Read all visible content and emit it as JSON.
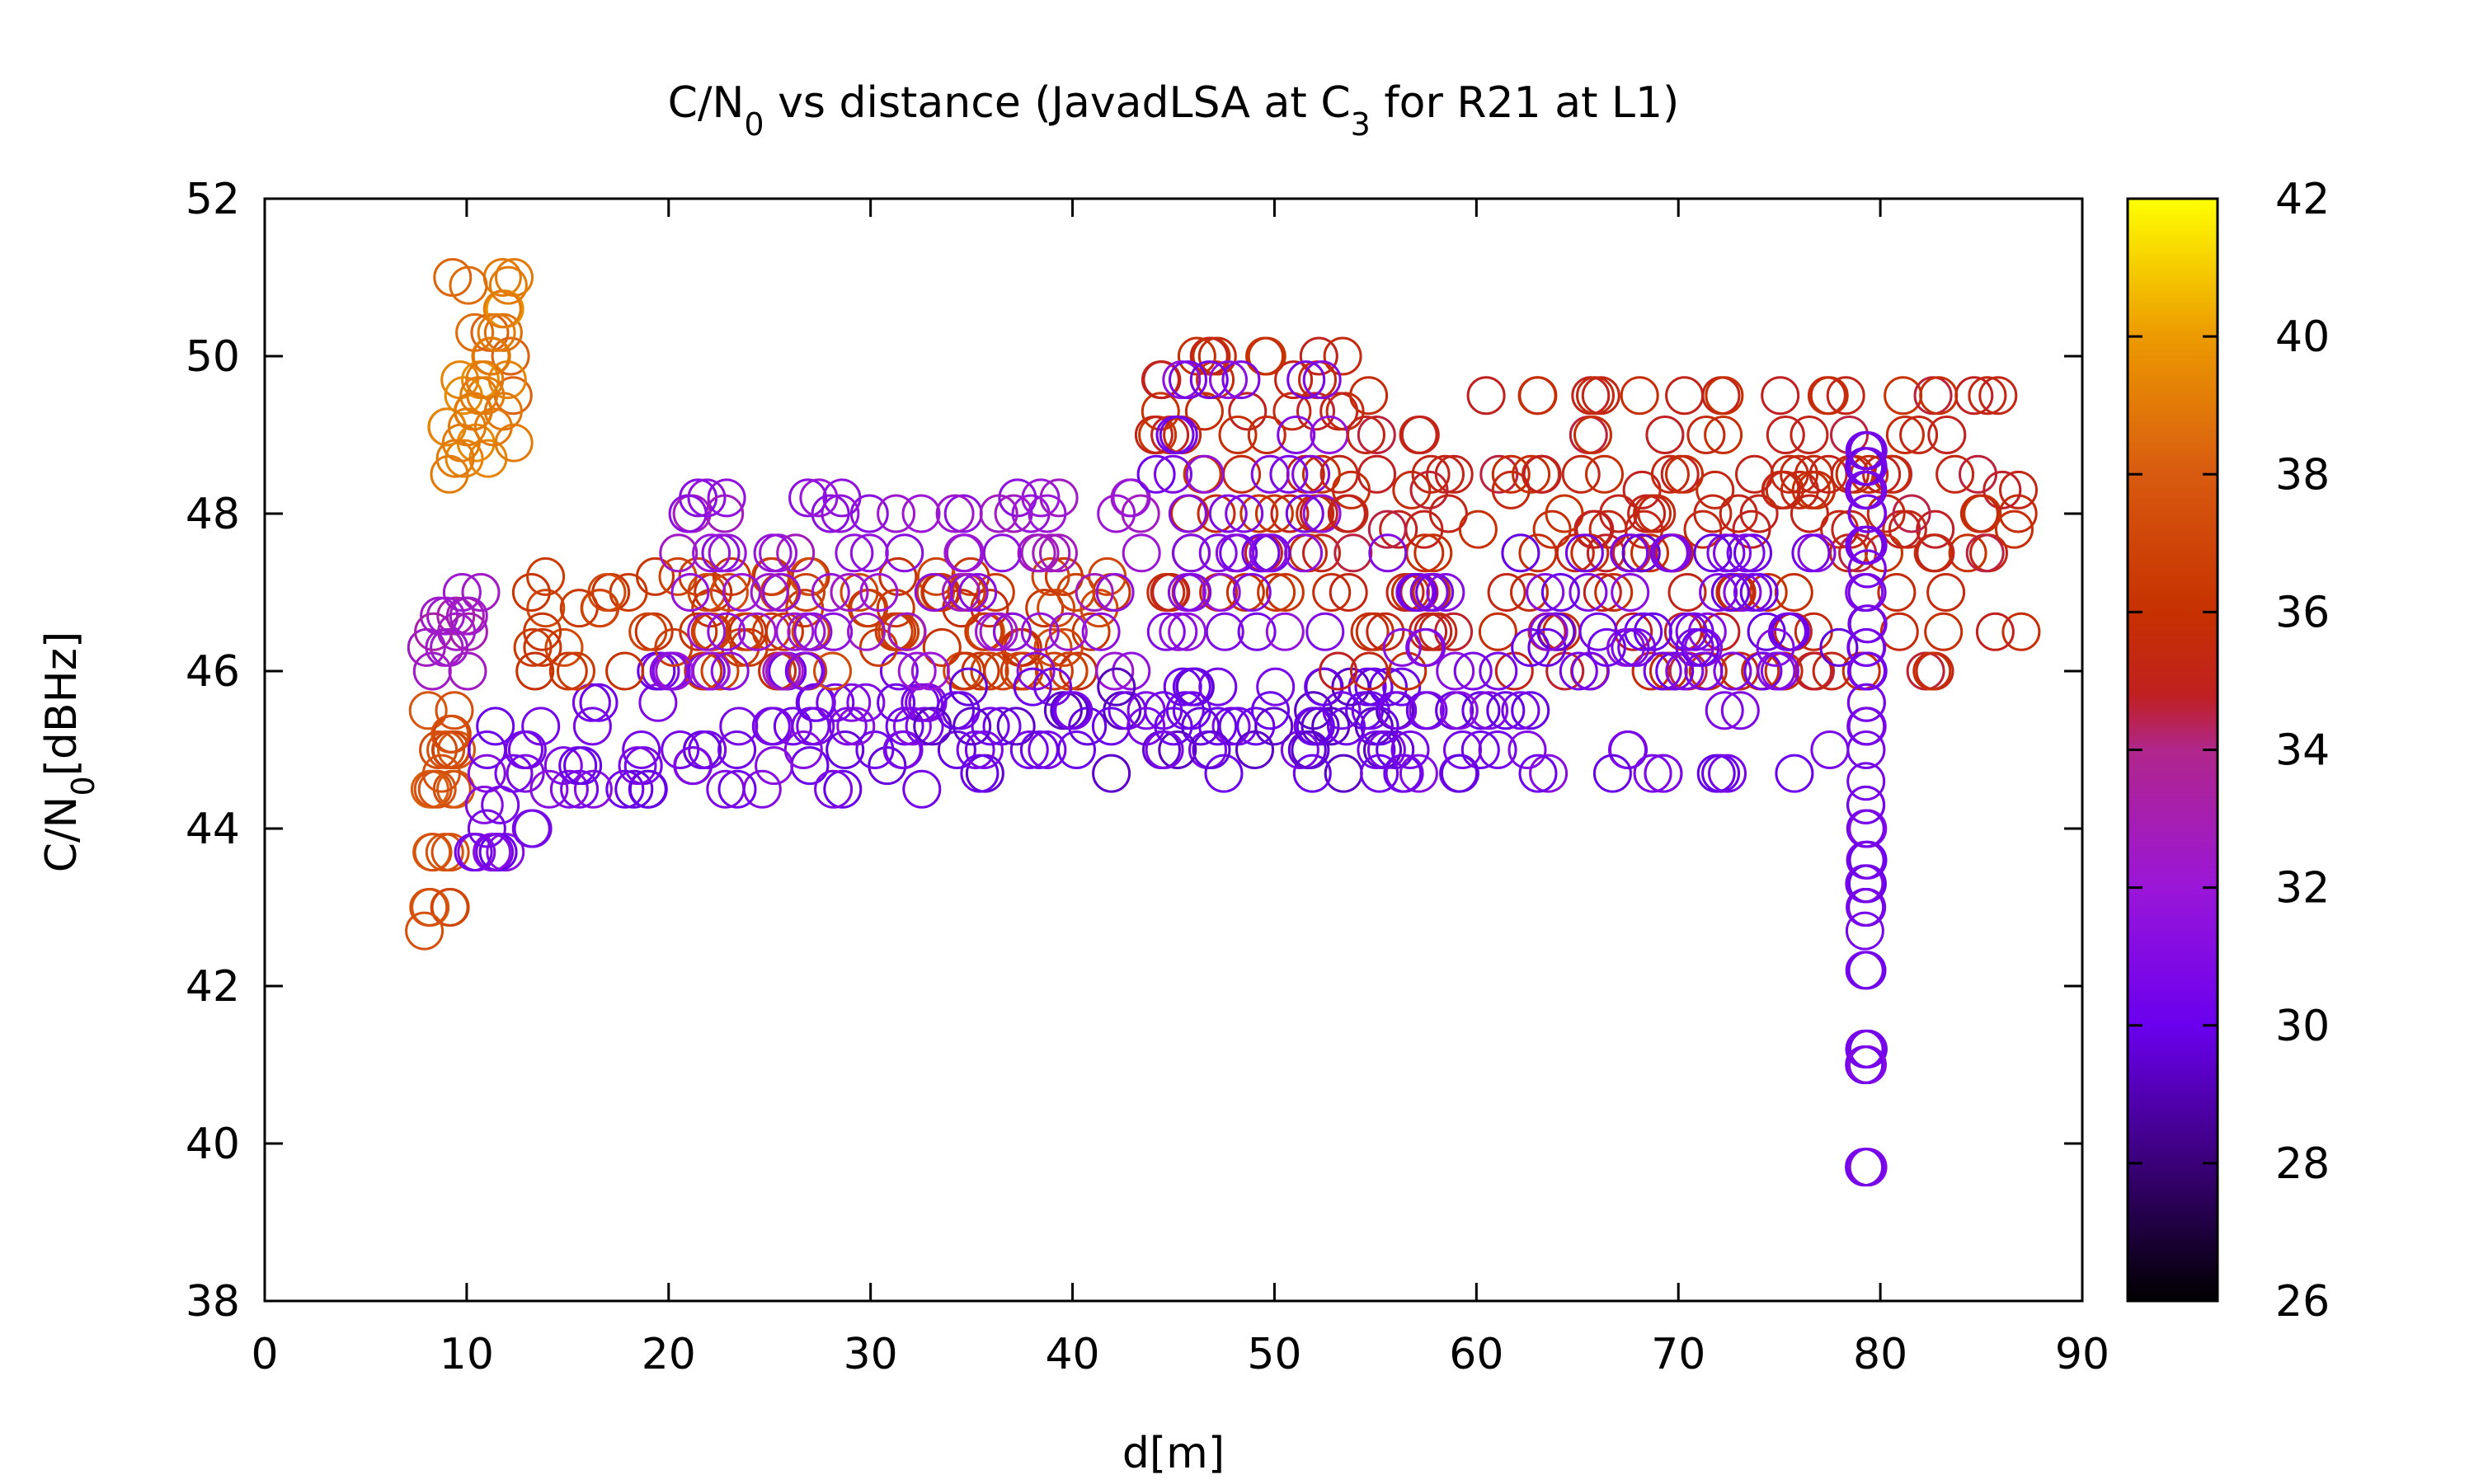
{
  "chart_data": {
    "type": "scatter",
    "title": {
      "text_a": "C/N",
      "sub_a": "0",
      "text_b": " vs distance (JavadLSA at C",
      "sub_b": "3",
      "text_c": " for R21 at L1)"
    },
    "xlabel": "d[m]",
    "ylabel": {
      "main": "C/N",
      "sub": "0",
      "rest": "[dBHz]"
    },
    "xlim": [
      0,
      90
    ],
    "ylim": [
      38,
      52
    ],
    "xticks": [
      "0",
      "10",
      "20",
      "30",
      "40",
      "50",
      "60",
      "70",
      "80",
      "90"
    ],
    "yticks": [
      "38",
      "40",
      "42",
      "44",
      "46",
      "48",
      "50",
      "52"
    ],
    "colorbar": {
      "range": [
        26,
        42
      ],
      "ticks": [
        "26",
        "28",
        "30",
        "32",
        "34",
        "36",
        "38",
        "40",
        "42"
      ],
      "palette": "gnuplot-like (black → blue/purple → red → orange → yellow)"
    },
    "marker": "open circle",
    "grid": false,
    "clusters": [
      {
        "name": "early-orange",
        "x_range": [
          7.8,
          9.5
        ],
        "y_values": [
          42.7,
          43,
          43.7,
          44.5,
          44.7,
          45,
          45.2,
          45.5
        ],
        "color_value": 37.5
      },
      {
        "name": "early-gold-spike",
        "x_range": [
          9,
          12.5
        ],
        "y_values": [
          48.5,
          48.7,
          48.9,
          49.1,
          49.3,
          49.5,
          49.7,
          50,
          50.3,
          50.6,
          50.9,
          51
        ],
        "color_value": 39
      },
      {
        "name": "early-magenta",
        "x_range": [
          8,
          11
        ],
        "y_values": [
          46,
          46.3,
          46.5,
          46.7,
          47
        ],
        "color_value": 32.5
      },
      {
        "name": "early-violet",
        "x_range": [
          10,
          14
        ],
        "y_values": [
          43.7,
          44,
          44.3,
          44.7,
          45,
          45.3
        ],
        "color_value": 30.5
      },
      {
        "name": "band-violet-low",
        "x_range": [
          14,
          33
        ],
        "y_values": [
          44.5,
          44.8,
          45,
          45.3,
          45.6,
          46
        ],
        "color_value": 30.5
      },
      {
        "name": "band-orange-mid",
        "x_range": [
          13,
          42
        ],
        "y_values": [
          46,
          46.3,
          46.5,
          46.8,
          47,
          47.2
        ],
        "color_value": 36.5
      },
      {
        "name": "band-purple",
        "x_range": [
          20,
          45
        ],
        "y_values": [
          46,
          46.5,
          47,
          47.5,
          48,
          48.2
        ],
        "color_value": 32
      },
      {
        "name": "mid-violet-low",
        "x_range": [
          33,
          57
        ],
        "y_values": [
          44.7,
          45,
          45.3,
          45.5,
          45.8
        ],
        "color_value": 30
      },
      {
        "name": "mid-red-high",
        "x_range": [
          44,
          54
        ],
        "y_values": [
          47,
          47.5,
          48,
          48.5,
          49,
          49.3,
          49.7,
          50
        ],
        "color_value": 35.5
      },
      {
        "name": "mid-violet-high",
        "x_range": [
          44,
          53
        ],
        "y_values": [
          46.5,
          47,
          47.5,
          48,
          48.5,
          49,
          49.7
        ],
        "color_value": 31
      },
      {
        "name": "late-red",
        "x_range": [
          53,
          87
        ],
        "y_values": [
          46,
          46.5,
          47,
          47.5,
          47.8,
          48,
          48.3,
          48.5,
          49,
          49.5
        ],
        "color_value": 35.3
      },
      {
        "name": "late-violet",
        "x_range": [
          55,
          78
        ],
        "y_values": [
          44.7,
          45,
          45.5,
          46,
          46.3,
          46.5,
          47,
          47.5
        ],
        "color_value": 30.5
      },
      {
        "name": "vertical-violet-column",
        "x_range": [
          79.2,
          79.4
        ],
        "y_values": [
          39.7,
          41,
          41.2,
          42.2,
          42.7,
          43,
          43.3,
          43.6,
          44,
          44.3,
          44.6,
          45,
          45.3,
          45.6,
          46,
          46.3,
          46.6,
          47,
          47.3,
          47.6,
          48,
          48.3,
          48.6,
          48.8
        ],
        "color_value": 30.5
      }
    ]
  }
}
